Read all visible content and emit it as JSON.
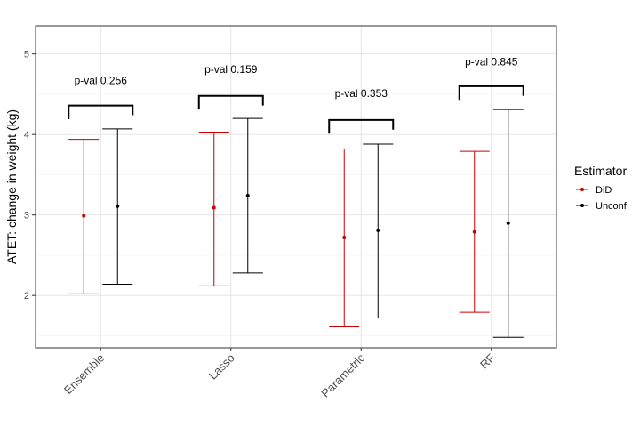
{
  "chart_data": {
    "type": "errorbar",
    "title": "",
    "xlabel": "",
    "ylabel": "ATET: change in weight (kg)",
    "ylim": [
      1.35,
      5.35
    ],
    "yticks": [
      2,
      3,
      4,
      5
    ],
    "categories": [
      "Ensemble",
      "Lasso",
      "Parametric",
      "RF"
    ],
    "grid": true,
    "legend": {
      "title": "Estimator",
      "position": "right",
      "entries": [
        {
          "name": "DiD",
          "color": "#cc0000"
        },
        {
          "name": "Unconf",
          "color": "#000000"
        }
      ]
    },
    "series": [
      {
        "name": "DiD",
        "color": "#cc0000",
        "points": [
          {
            "category": "Ensemble",
            "estimate": 2.99,
            "lower": 2.02,
            "upper": 3.94
          },
          {
            "category": "Lasso",
            "estimate": 3.09,
            "lower": 2.12,
            "upper": 4.03
          },
          {
            "category": "Parametric",
            "estimate": 2.72,
            "lower": 1.61,
            "upper": 3.82
          },
          {
            "category": "RF",
            "estimate": 2.79,
            "lower": 1.79,
            "upper": 3.79
          }
        ]
      },
      {
        "name": "Unconf",
        "color": "#000000",
        "points": [
          {
            "category": "Ensemble",
            "estimate": 3.11,
            "lower": 2.14,
            "upper": 4.07
          },
          {
            "category": "Lasso",
            "estimate": 3.24,
            "lower": 2.28,
            "upper": 4.2
          },
          {
            "category": "Parametric",
            "estimate": 2.81,
            "lower": 1.72,
            "upper": 3.88
          },
          {
            "category": "RF",
            "estimate": 2.9,
            "lower": 1.48,
            "upper": 4.31
          }
        ]
      }
    ],
    "annotations": [
      {
        "category": "Ensemble",
        "label": "p-val 0.256",
        "bracket_y": 4.36,
        "label_y": 4.67
      },
      {
        "category": "Lasso",
        "label": "p-val 0.159",
        "bracket_y": 4.48,
        "label_y": 4.81
      },
      {
        "category": "Parametric",
        "label": "p-val 0.353",
        "bracket_y": 4.18,
        "label_y": 4.51
      },
      {
        "category": "RF",
        "label": "p-val 0.845",
        "bracket_y": 4.6,
        "label_y": 4.9
      }
    ]
  }
}
